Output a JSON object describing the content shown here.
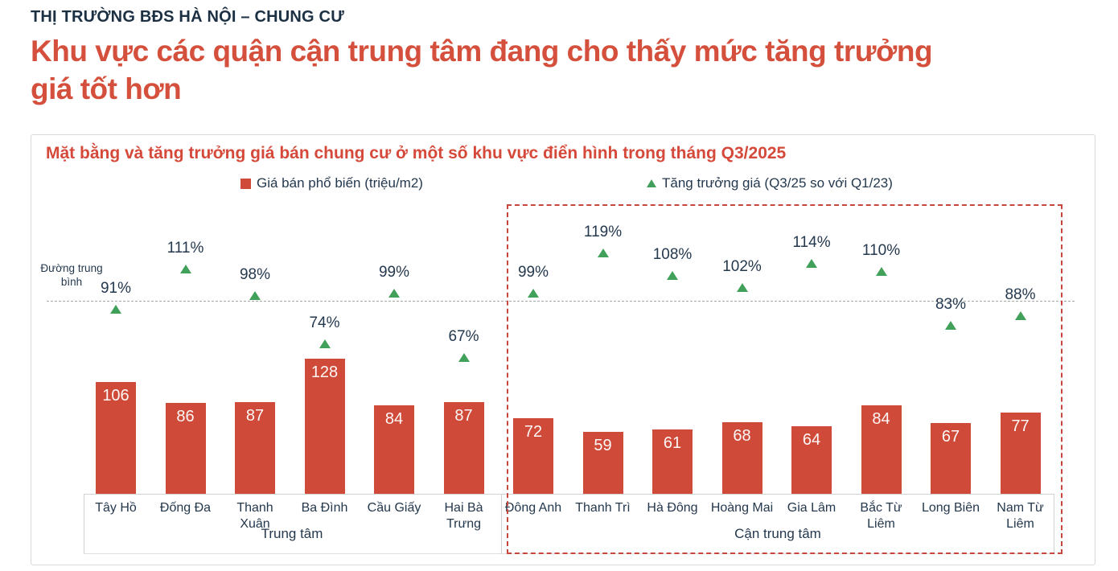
{
  "header": {
    "kicker": "THỊ TRƯỜNG BĐS HÀ NỘI – CHUNG CƯ",
    "title": "Khu vực các quận cận trung tâm đang cho thấy mức tăng trưởng giá tốt hơn"
  },
  "chart_data": {
    "type": "bar",
    "title": "Mặt bằng và tăng trưởng giá bán chung cư ở một số khu vực điển hình trong tháng Q3/2025",
    "categories": [
      "Tây Hồ",
      "Đống Đa",
      "Thanh Xuân",
      "Ba Đình",
      "Cầu Giấy",
      "Hai Bà Trưng",
      "Đông Anh",
      "Thanh Trì",
      "Hà Đông",
      "Hoàng Mai",
      "Gia Lâm",
      "Bắc Từ Liêm",
      "Long Biên",
      "Nam Từ Liêm"
    ],
    "series": [
      {
        "name": "Giá bán phổ biến (triệu/m2)",
        "type": "bar",
        "color": "#cf4a38",
        "values": [
          106,
          86,
          87,
          128,
          84,
          87,
          72,
          59,
          61,
          68,
          64,
          84,
          67,
          77
        ]
      },
      {
        "name": "Tăng trưởng giá (Q3/25 so với Q1/23)",
        "type": "scatter",
        "marker": "triangle-up",
        "color": "#41a05a",
        "unit": "%",
        "values": [
          91,
          111,
          98,
          74,
          99,
          67,
          99,
          119,
          108,
          102,
          114,
          110,
          83,
          88
        ]
      }
    ],
    "groups": [
      {
        "label": "Trung tâm",
        "from": 0,
        "to": 5,
        "highlighted": false
      },
      {
        "label": "Cận trung tâm",
        "from": 6,
        "to": 13,
        "highlighted": true
      }
    ],
    "average_line": {
      "label": "Đường trung bình",
      "value_pct": 97
    },
    "legend_position": "top",
    "grid": false,
    "y_axis_visible": false,
    "bar_ylim": [
      0,
      130
    ]
  },
  "colors": {
    "title_red": "#d5503c",
    "bar_red": "#cf4a38",
    "growth_green": "#41a05a",
    "navy_text": "#24384e",
    "card_border": "#d9d9d9",
    "highlight_box_red": "#c8473c",
    "average_line_gray": "#a6a6a6"
  }
}
